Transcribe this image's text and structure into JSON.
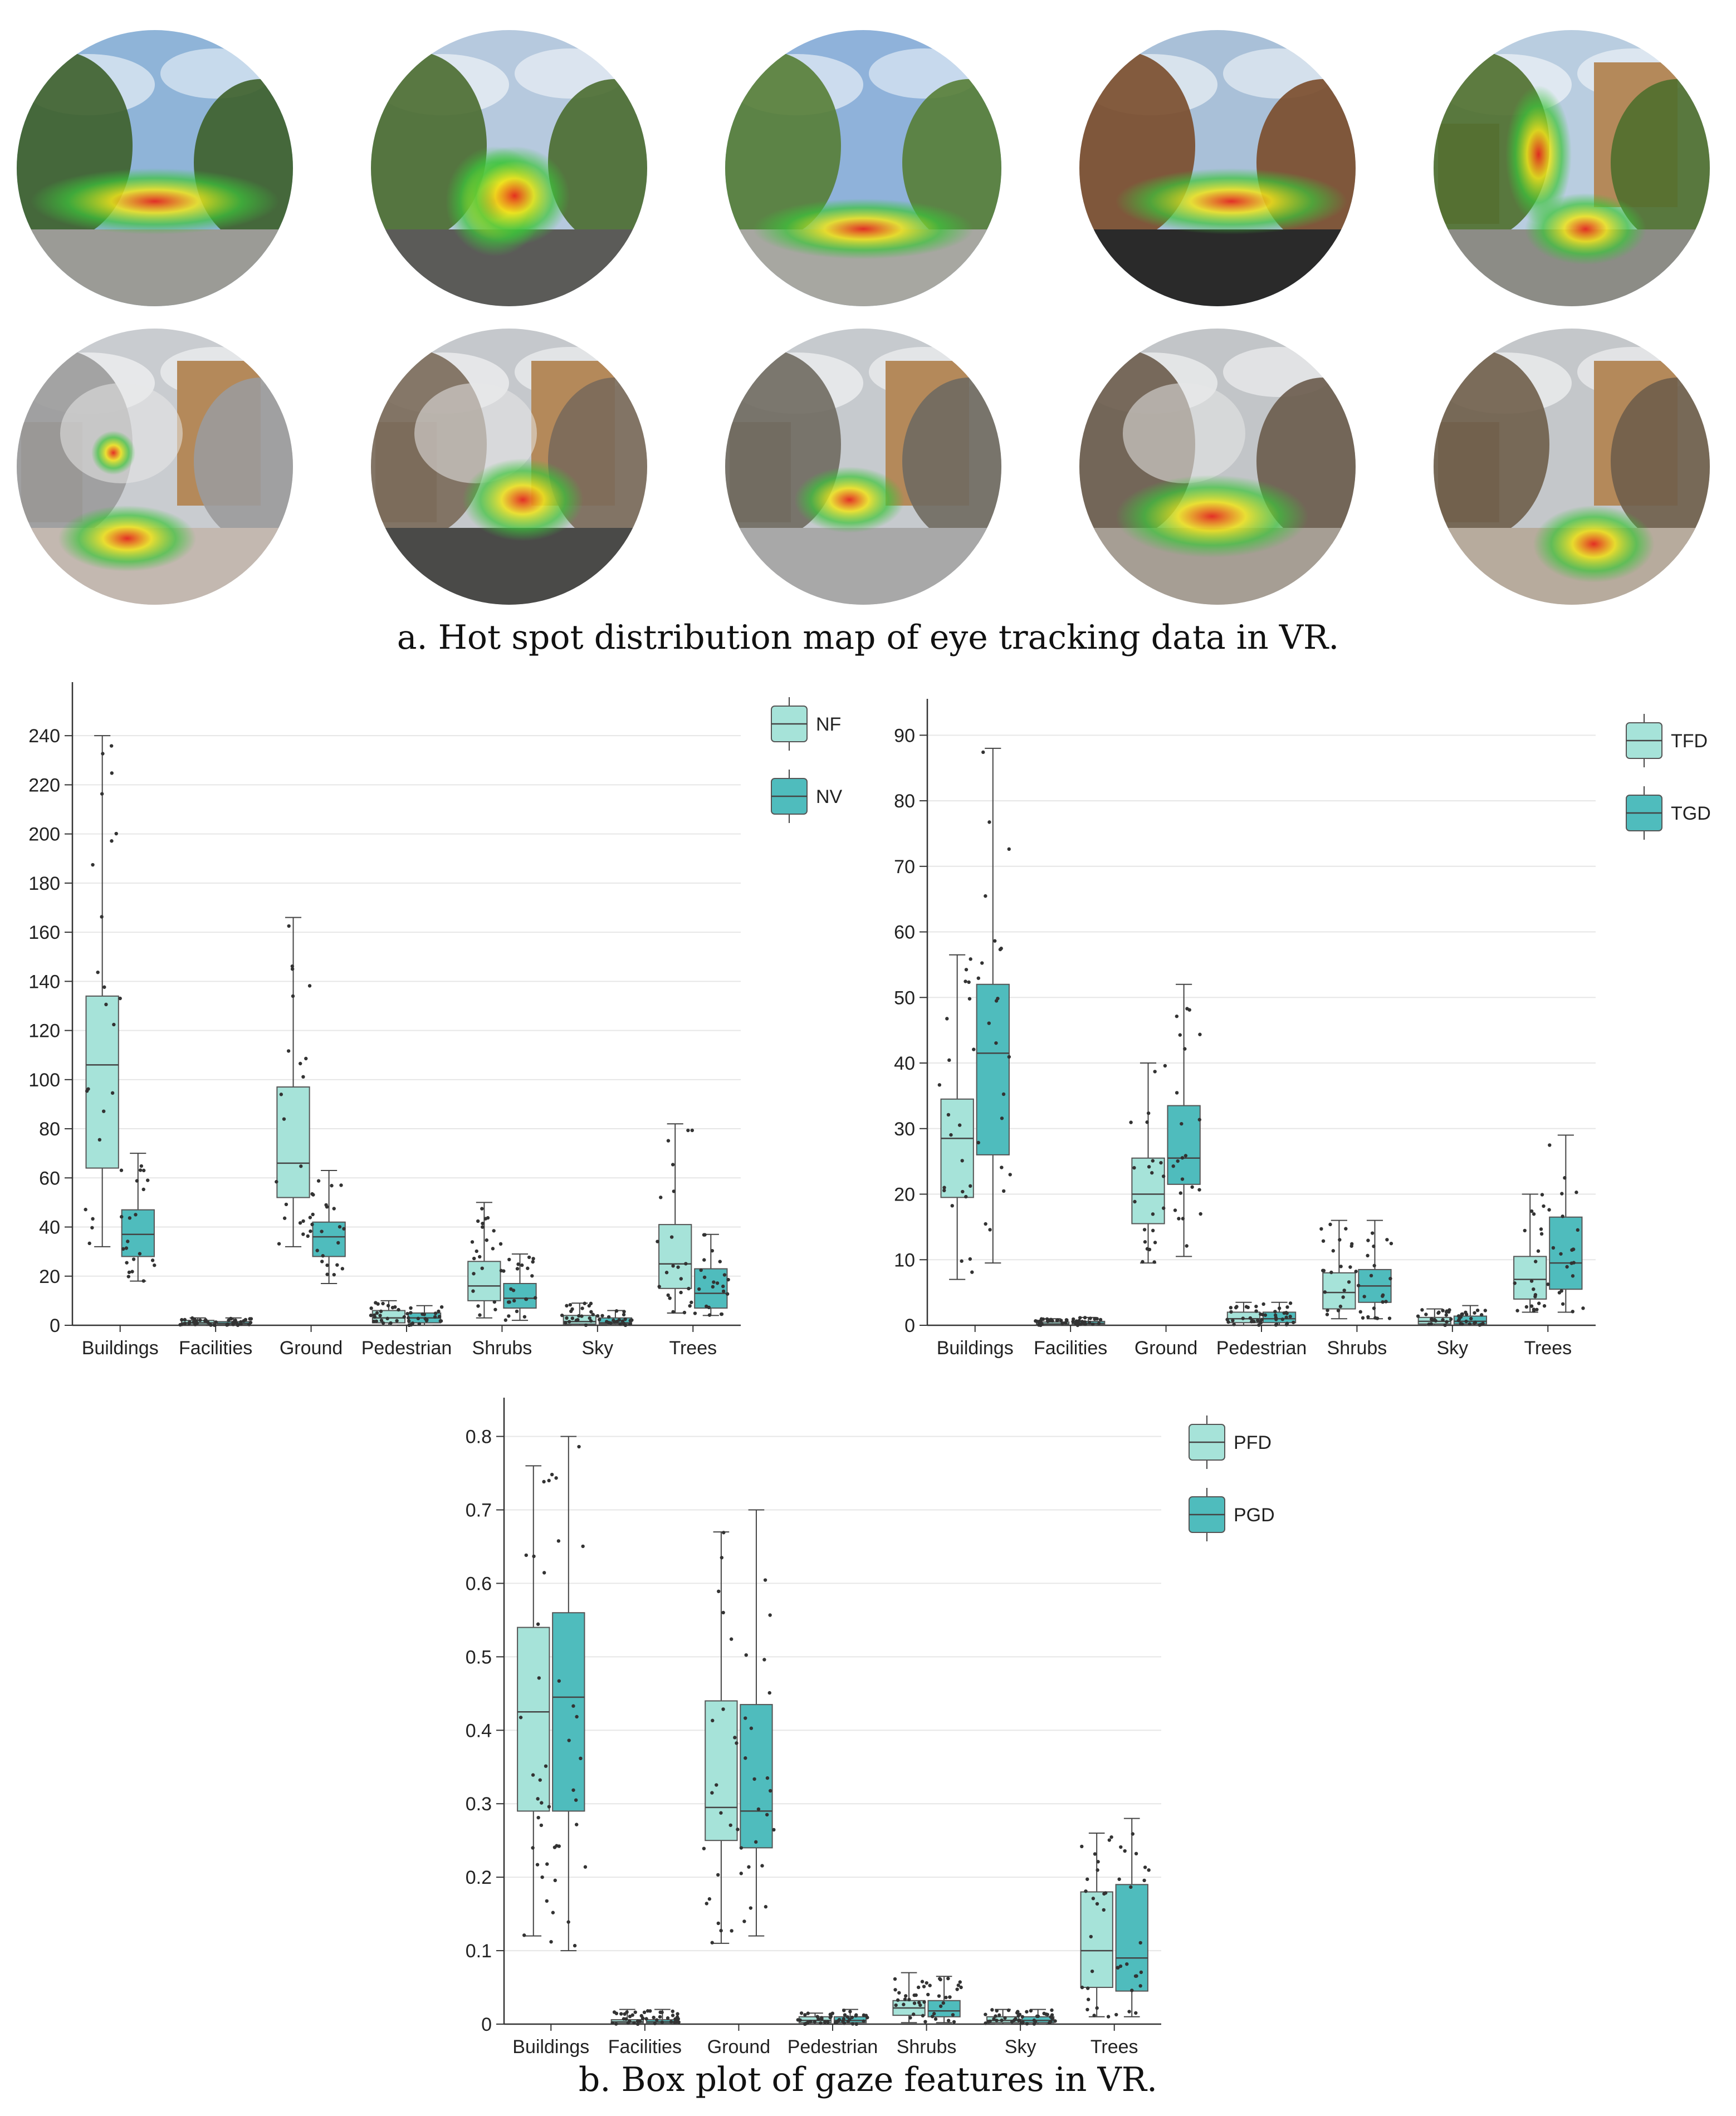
{
  "captions": {
    "a": "a. Hot spot distribution map of eye tracking data in VR.",
    "b": "b. Box plot of gaze features in VR."
  },
  "heatmap_scenes": [
    {
      "sky": "#8fb4d8",
      "foliage": "#3d5f2a",
      "ground": "#9b9b96",
      "building": false,
      "snow": false
    },
    {
      "sky": "#b6c9de",
      "foliage": "#4a6b2f",
      "ground": "#5b5b58",
      "building": false,
      "snow": false
    },
    {
      "sky": "#8fb2da",
      "foliage": "#577d35",
      "ground": "#a7a7a1",
      "building": false,
      "snow": false
    },
    {
      "sky": "#a9c0d8",
      "foliage": "#7a4b2a",
      "ground": "#2a2a2a",
      "building": false,
      "snow": false
    },
    {
      "sky": "#b9cde0",
      "foliage": "#4f6f2c",
      "ground": "#8c8c86",
      "building": true,
      "snow": false
    },
    {
      "sky": "#c9ccd0",
      "foliage": "#9b9b9b",
      "ground": "#c3b8b0",
      "building": true,
      "snow": true
    },
    {
      "sky": "#c5c8cc",
      "foliage": "#7a6a5a",
      "ground": "#4a4a48",
      "building": true,
      "snow": true
    },
    {
      "sky": "#c6cace",
      "foliage": "#6f6a60",
      "ground": "#a8a8a8",
      "building": true,
      "snow": false
    },
    {
      "sky": "#c2c5c8",
      "foliage": "#6a5b4b",
      "ground": "#a69e94",
      "building": false,
      "snow": true
    },
    {
      "sky": "#c4c7ca",
      "foliage": "#6f5e4a",
      "ground": "#b7ab9d",
      "building": true,
      "snow": false
    }
  ],
  "colors": {
    "light_box": "#a6e3d9",
    "dark_box": "#4fbcbd",
    "heat_red": "#e5281e",
    "heat_yellow": "#f0e41a",
    "heat_green": "#3cc43a"
  },
  "chart_data": [
    {
      "type": "box",
      "categories": [
        "Buildings",
        "Facilities",
        "Ground",
        "Pedestrian",
        "Shrubs",
        "Sky",
        "Trees"
      ],
      "yticks": [
        "0",
        "20",
        "40",
        "60",
        "80",
        "100",
        "120",
        "140",
        "160",
        "180",
        "200",
        "220",
        "240"
      ],
      "ylim": [
        0,
        255
      ],
      "legend_position": "top-right",
      "series": [
        {
          "name": "NF",
          "boxes": [
            {
              "min": 32,
              "q1": 64,
              "median": 106,
              "q3": 134,
              "max": 240
            },
            {
              "min": 0,
              "q1": 0.3,
              "median": 1,
              "q3": 2,
              "max": 3
            },
            {
              "min": 32,
              "q1": 52,
              "median": 66,
              "q3": 97,
              "max": 166
            },
            {
              "min": 0,
              "q1": 1,
              "median": 3,
              "q3": 6,
              "max": 10
            },
            {
              "min": 3,
              "q1": 10,
              "median": 16,
              "q3": 26,
              "max": 50
            },
            {
              "min": 0,
              "q1": 0.5,
              "median": 1.5,
              "q3": 4,
              "max": 9
            },
            {
              "min": 5,
              "q1": 15,
              "median": 25,
              "q3": 41,
              "max": 82
            }
          ]
        },
        {
          "name": "NV",
          "boxes": [
            {
              "min": 18,
              "q1": 28,
              "median": 37,
              "q3": 47,
              "max": 70
            },
            {
              "min": 0,
              "q1": 0.3,
              "median": 0.8,
              "q3": 1.5,
              "max": 3
            },
            {
              "min": 17,
              "q1": 28,
              "median": 36,
              "q3": 42,
              "max": 63
            },
            {
              "min": 0,
              "q1": 1,
              "median": 3,
              "q3": 5,
              "max": 8
            },
            {
              "min": 2,
              "q1": 7,
              "median": 11,
              "q3": 17,
              "max": 29
            },
            {
              "min": 0,
              "q1": 0.5,
              "median": 1,
              "q3": 3,
              "max": 6
            },
            {
              "min": 4,
              "q1": 7,
              "median": 13,
              "q3": 23,
              "max": 37
            }
          ]
        }
      ]
    },
    {
      "type": "box",
      "categories": [
        "Buildings",
        "Facilities",
        "Ground",
        "Pedestrian",
        "Shrubs",
        "Sky",
        "Trees"
      ],
      "yticks": [
        "0",
        "10",
        "20",
        "30",
        "40",
        "50",
        "60",
        "70",
        "80",
        "90"
      ],
      "ylim": [
        0,
        93
      ],
      "legend_position": "top-right",
      "series": [
        {
          "name": "TFD",
          "boxes": [
            {
              "min": 7,
              "q1": 19.5,
              "median": 28.5,
              "q3": 34.5,
              "max": 56.5
            },
            {
              "min": 0,
              "q1": 0.1,
              "median": 0.2,
              "q3": 0.5,
              "max": 1
            },
            {
              "min": 9.5,
              "q1": 15.5,
              "median": 20,
              "q3": 25.5,
              "max": 40
            },
            {
              "min": 0,
              "q1": 0.4,
              "median": 1,
              "q3": 2,
              "max": 3.5
            },
            {
              "min": 1,
              "q1": 2.5,
              "median": 5,
              "q3": 8,
              "max": 16
            },
            {
              "min": 0,
              "q1": 0.2,
              "median": 0.6,
              "q3": 1.2,
              "max": 2.5
            },
            {
              "min": 2,
              "q1": 4,
              "median": 7,
              "q3": 10.5,
              "max": 20
            }
          ]
        },
        {
          "name": "TGD",
          "boxes": [
            {
              "min": 9.5,
              "q1": 26,
              "median": 41.5,
              "q3": 52,
              "max": 88
            },
            {
              "min": 0,
              "q1": 0.1,
              "median": 0.3,
              "q3": 0.6,
              "max": 1.2
            },
            {
              "min": 10.5,
              "q1": 21.5,
              "median": 25.5,
              "q3": 33.5,
              "max": 52
            },
            {
              "min": 0,
              "q1": 0.4,
              "median": 1,
              "q3": 2,
              "max": 3.5
            },
            {
              "min": 1,
              "q1": 3.5,
              "median": 6,
              "q3": 8.5,
              "max": 16
            },
            {
              "min": 0,
              "q1": 0.2,
              "median": 0.6,
              "q3": 1.4,
              "max": 3
            },
            {
              "min": 2,
              "q1": 5.5,
              "median": 9.5,
              "q3": 16.5,
              "max": 29
            }
          ]
        }
      ]
    },
    {
      "type": "box",
      "categories": [
        "Buildings",
        "Facilities",
        "Ground",
        "Pedestrian",
        "Shrubs",
        "Sky",
        "Trees"
      ],
      "yticks": [
        "0",
        "0.1",
        "0.2",
        "0.3",
        "0.4",
        "0.5",
        "0.6",
        "0.7",
        "0.8"
      ],
      "ylim": [
        0,
        0.83
      ],
      "legend_position": "top-right",
      "series": [
        {
          "name": "PFD",
          "boxes": [
            {
              "min": 0.12,
              "q1": 0.29,
              "median": 0.425,
              "q3": 0.54,
              "max": 0.76
            },
            {
              "min": 0,
              "q1": 0.001,
              "median": 0.003,
              "q3": 0.006,
              "max": 0.02
            },
            {
              "min": 0.11,
              "q1": 0.25,
              "median": 0.295,
              "q3": 0.44,
              "max": 0.67
            },
            {
              "min": 0,
              "q1": 0.002,
              "median": 0.005,
              "q3": 0.01,
              "max": 0.015
            },
            {
              "min": 0.002,
              "q1": 0.012,
              "median": 0.022,
              "q3": 0.032,
              "max": 0.07
            },
            {
              "min": 0,
              "q1": 0.002,
              "median": 0.005,
              "q3": 0.01,
              "max": 0.02
            },
            {
              "min": 0.01,
              "q1": 0.05,
              "median": 0.1,
              "q3": 0.18,
              "max": 0.26
            }
          ]
        },
        {
          "name": "PGD",
          "boxes": [
            {
              "min": 0.1,
              "q1": 0.29,
              "median": 0.445,
              "q3": 0.56,
              "max": 0.8
            },
            {
              "min": 0,
              "q1": 0.001,
              "median": 0.003,
              "q3": 0.006,
              "max": 0.02
            },
            {
              "min": 0.12,
              "q1": 0.24,
              "median": 0.29,
              "q3": 0.435,
              "max": 0.7
            },
            {
              "min": 0,
              "q1": 0.002,
              "median": 0.005,
              "q3": 0.01,
              "max": 0.02
            },
            {
              "min": 0.002,
              "q1": 0.01,
              "median": 0.018,
              "q3": 0.032,
              "max": 0.065
            },
            {
              "min": 0,
              "q1": 0.002,
              "median": 0.005,
              "q3": 0.01,
              "max": 0.02
            },
            {
              "min": 0.01,
              "q1": 0.045,
              "median": 0.09,
              "q3": 0.19,
              "max": 0.28
            }
          ]
        }
      ]
    }
  ]
}
